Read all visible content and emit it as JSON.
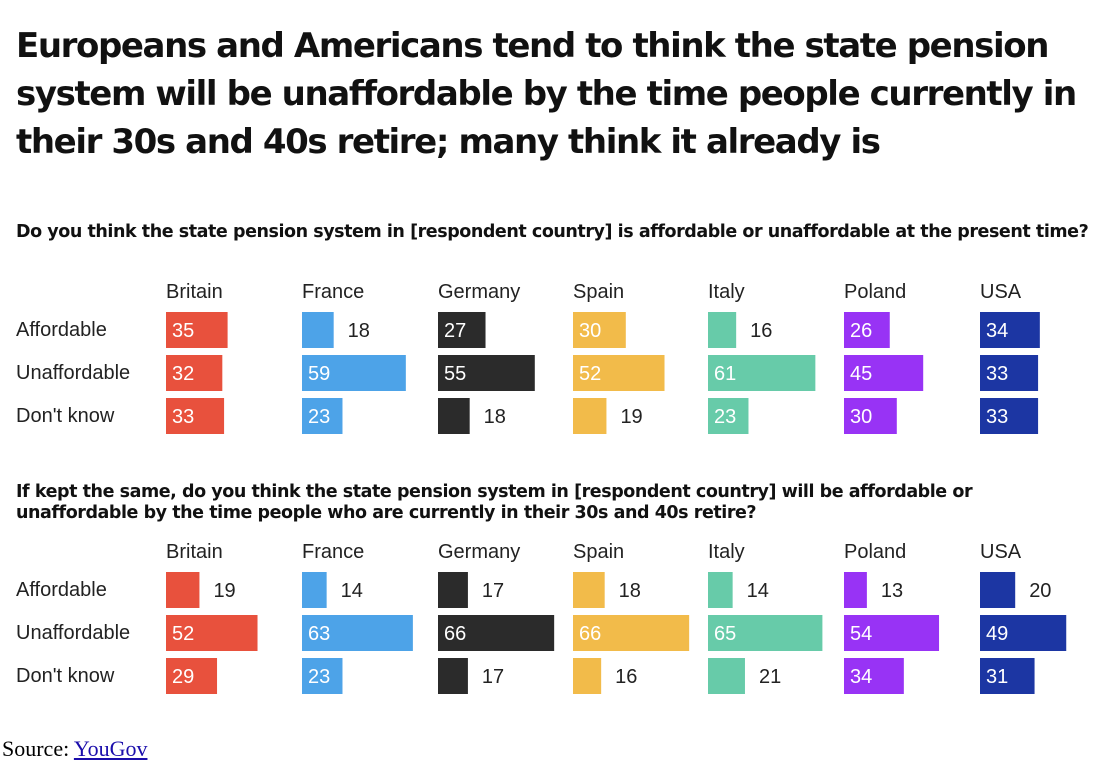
{
  "title": "Europeans and Americans tend to think the state pension system will be unaffordable by the time people currently in their 30s and 40s retire; many think it already is",
  "colors": {
    "Britain": "#e8513d",
    "France": "#4da3e8",
    "Germany": "#2b2b2b",
    "Spain": "#f2bb4a",
    "Italy": "#67cba9",
    "Poland": "#9833f5",
    "USA": "#1c36a3"
  },
  "chart_data": [
    {
      "type": "bar",
      "orientation": "horizontal",
      "layout": "small-multiples",
      "title": "Do you think the state pension system in [respondent country] is affordable or unaffordable at the present time?",
      "categories": [
        "Affordable",
        "Unaffordable",
        "Don't know"
      ],
      "xlim": [
        0,
        100
      ],
      "series": [
        {
          "name": "Britain",
          "values": [
            35,
            32,
            33
          ]
        },
        {
          "name": "France",
          "values": [
            18,
            59,
            23
          ]
        },
        {
          "name": "Germany",
          "values": [
            27,
            55,
            18
          ]
        },
        {
          "name": "Spain",
          "values": [
            30,
            52,
            19
          ]
        },
        {
          "name": "Italy",
          "values": [
            16,
            61,
            23
          ]
        },
        {
          "name": "Poland",
          "values": [
            26,
            45,
            30
          ]
        },
        {
          "name": "USA",
          "values": [
            34,
            33,
            33
          ]
        }
      ]
    },
    {
      "type": "bar",
      "orientation": "horizontal",
      "layout": "small-multiples",
      "title": "If kept the same, do you think the state pension system in [respondent country] will be affordable or unaffordable by the time people who are currently in their 30s and 40s retire?",
      "categories": [
        "Affordable",
        "Unaffordable",
        "Don't know"
      ],
      "xlim": [
        0,
        100
      ],
      "series": [
        {
          "name": "Britain",
          "values": [
            19,
            52,
            29
          ]
        },
        {
          "name": "France",
          "values": [
            14,
            63,
            23
          ]
        },
        {
          "name": "Germany",
          "values": [
            17,
            66,
            17
          ]
        },
        {
          "name": "Spain",
          "values": [
            18,
            66,
            16
          ]
        },
        {
          "name": "Italy",
          "values": [
            14,
            65,
            21
          ]
        },
        {
          "name": "Poland",
          "values": [
            13,
            54,
            34
          ]
        },
        {
          "name": "USA",
          "values": [
            20,
            49,
            31
          ]
        }
      ]
    }
  ],
  "source": {
    "label": "Source:",
    "link_text": "YouGov"
  }
}
